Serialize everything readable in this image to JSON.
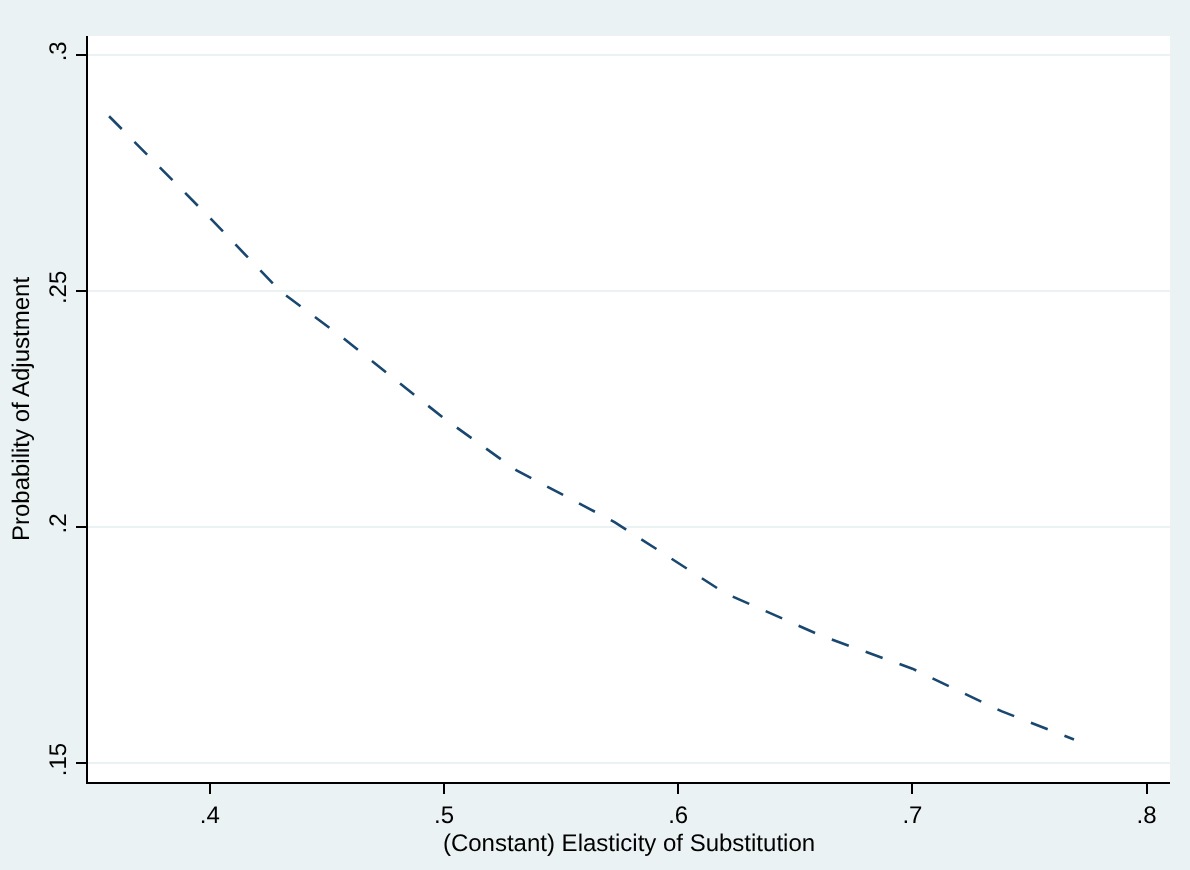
{
  "chart_data": {
    "type": "line",
    "xlabel": "(Constant) Elasticity of Substitution",
    "ylabel": "Probability of Adjustment",
    "x": [
      0.357,
      0.401,
      0.43,
      0.457,
      0.5,
      0.531,
      0.573,
      0.62,
      0.661,
      0.7,
      0.738,
      0.769
    ],
    "series": [
      {
        "color": "#1a476f",
        "values": [
          0.287,
          0.265,
          0.25,
          0.24,
          0.223,
          0.212,
          0.201,
          0.186,
          0.177,
          0.17,
          0.161,
          0.155
        ]
      }
    ],
    "line_style": "dashed",
    "marker": "none",
    "grid": "y",
    "xlim": [
      0.348,
      0.81
    ],
    "ylim": [
      0.146,
      0.304
    ],
    "xticks": [
      {
        "value": 0.4,
        "label": ".4"
      },
      {
        "value": 0.5,
        "label": ".5"
      },
      {
        "value": 0.6,
        "label": ".6"
      },
      {
        "value": 0.7,
        "label": ".7"
      },
      {
        "value": 0.8,
        "label": ".8"
      }
    ],
    "yticks": [
      {
        "value": 0.15,
        "label": ".15"
      },
      {
        "value": 0.2,
        "label": ".2"
      },
      {
        "value": 0.25,
        "label": ".25"
      },
      {
        "value": 0.3,
        "label": ".3"
      }
    ]
  }
}
